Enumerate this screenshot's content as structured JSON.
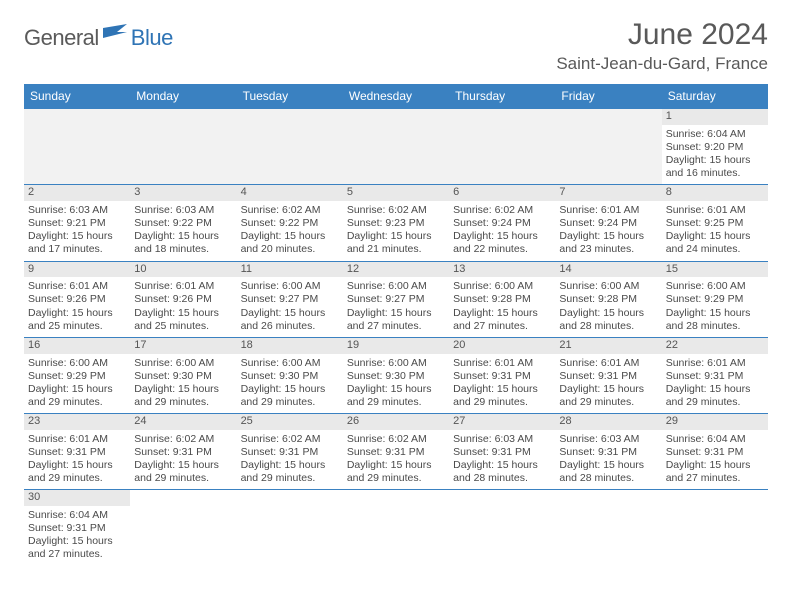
{
  "brand": {
    "part1": "General",
    "part2": "Blue",
    "flag_color": "#2f74b5"
  },
  "header": {
    "month_title": "June 2024",
    "location": "Saint-Jean-du-Gard, France"
  },
  "colors": {
    "header_bg": "#3a81c1",
    "header_text": "#ffffff",
    "row_border": "#3a81c1",
    "daynum_bg": "#e9e9e9",
    "blank_bg": "#f2f2f2",
    "body_text": "#4a4a4a",
    "title_text": "#595959"
  },
  "layout": {
    "columns": 7,
    "cell_font_size_pt": 8,
    "header_font_size_pt": 9
  },
  "day_labels": [
    "Sunday",
    "Monday",
    "Tuesday",
    "Wednesday",
    "Thursday",
    "Friday",
    "Saturday"
  ],
  "weeks": [
    [
      {
        "blank": true
      },
      {
        "blank": true
      },
      {
        "blank": true
      },
      {
        "blank": true
      },
      {
        "blank": true
      },
      {
        "blank": true
      },
      {
        "n": "1",
        "sunrise": "Sunrise: 6:04 AM",
        "sunset": "Sunset: 9:20 PM",
        "daylight1": "Daylight: 15 hours",
        "daylight2": "and 16 minutes."
      }
    ],
    [
      {
        "n": "2",
        "sunrise": "Sunrise: 6:03 AM",
        "sunset": "Sunset: 9:21 PM",
        "daylight1": "Daylight: 15 hours",
        "daylight2": "and 17 minutes."
      },
      {
        "n": "3",
        "sunrise": "Sunrise: 6:03 AM",
        "sunset": "Sunset: 9:22 PM",
        "daylight1": "Daylight: 15 hours",
        "daylight2": "and 18 minutes."
      },
      {
        "n": "4",
        "sunrise": "Sunrise: 6:02 AM",
        "sunset": "Sunset: 9:22 PM",
        "daylight1": "Daylight: 15 hours",
        "daylight2": "and 20 minutes."
      },
      {
        "n": "5",
        "sunrise": "Sunrise: 6:02 AM",
        "sunset": "Sunset: 9:23 PM",
        "daylight1": "Daylight: 15 hours",
        "daylight2": "and 21 minutes."
      },
      {
        "n": "6",
        "sunrise": "Sunrise: 6:02 AM",
        "sunset": "Sunset: 9:24 PM",
        "daylight1": "Daylight: 15 hours",
        "daylight2": "and 22 minutes."
      },
      {
        "n": "7",
        "sunrise": "Sunrise: 6:01 AM",
        "sunset": "Sunset: 9:24 PM",
        "daylight1": "Daylight: 15 hours",
        "daylight2": "and 23 minutes."
      },
      {
        "n": "8",
        "sunrise": "Sunrise: 6:01 AM",
        "sunset": "Sunset: 9:25 PM",
        "daylight1": "Daylight: 15 hours",
        "daylight2": "and 24 minutes."
      }
    ],
    [
      {
        "n": "9",
        "sunrise": "Sunrise: 6:01 AM",
        "sunset": "Sunset: 9:26 PM",
        "daylight1": "Daylight: 15 hours",
        "daylight2": "and 25 minutes."
      },
      {
        "n": "10",
        "sunrise": "Sunrise: 6:01 AM",
        "sunset": "Sunset: 9:26 PM",
        "daylight1": "Daylight: 15 hours",
        "daylight2": "and 25 minutes."
      },
      {
        "n": "11",
        "sunrise": "Sunrise: 6:00 AM",
        "sunset": "Sunset: 9:27 PM",
        "daylight1": "Daylight: 15 hours",
        "daylight2": "and 26 minutes."
      },
      {
        "n": "12",
        "sunrise": "Sunrise: 6:00 AM",
        "sunset": "Sunset: 9:27 PM",
        "daylight1": "Daylight: 15 hours",
        "daylight2": "and 27 minutes."
      },
      {
        "n": "13",
        "sunrise": "Sunrise: 6:00 AM",
        "sunset": "Sunset: 9:28 PM",
        "daylight1": "Daylight: 15 hours",
        "daylight2": "and 27 minutes."
      },
      {
        "n": "14",
        "sunrise": "Sunrise: 6:00 AM",
        "sunset": "Sunset: 9:28 PM",
        "daylight1": "Daylight: 15 hours",
        "daylight2": "and 28 minutes."
      },
      {
        "n": "15",
        "sunrise": "Sunrise: 6:00 AM",
        "sunset": "Sunset: 9:29 PM",
        "daylight1": "Daylight: 15 hours",
        "daylight2": "and 28 minutes."
      }
    ],
    [
      {
        "n": "16",
        "sunrise": "Sunrise: 6:00 AM",
        "sunset": "Sunset: 9:29 PM",
        "daylight1": "Daylight: 15 hours",
        "daylight2": "and 29 minutes."
      },
      {
        "n": "17",
        "sunrise": "Sunrise: 6:00 AM",
        "sunset": "Sunset: 9:30 PM",
        "daylight1": "Daylight: 15 hours",
        "daylight2": "and 29 minutes."
      },
      {
        "n": "18",
        "sunrise": "Sunrise: 6:00 AM",
        "sunset": "Sunset: 9:30 PM",
        "daylight1": "Daylight: 15 hours",
        "daylight2": "and 29 minutes."
      },
      {
        "n": "19",
        "sunrise": "Sunrise: 6:00 AM",
        "sunset": "Sunset: 9:30 PM",
        "daylight1": "Daylight: 15 hours",
        "daylight2": "and 29 minutes."
      },
      {
        "n": "20",
        "sunrise": "Sunrise: 6:01 AM",
        "sunset": "Sunset: 9:31 PM",
        "daylight1": "Daylight: 15 hours",
        "daylight2": "and 29 minutes."
      },
      {
        "n": "21",
        "sunrise": "Sunrise: 6:01 AM",
        "sunset": "Sunset: 9:31 PM",
        "daylight1": "Daylight: 15 hours",
        "daylight2": "and 29 minutes."
      },
      {
        "n": "22",
        "sunrise": "Sunrise: 6:01 AM",
        "sunset": "Sunset: 9:31 PM",
        "daylight1": "Daylight: 15 hours",
        "daylight2": "and 29 minutes."
      }
    ],
    [
      {
        "n": "23",
        "sunrise": "Sunrise: 6:01 AM",
        "sunset": "Sunset: 9:31 PM",
        "daylight1": "Daylight: 15 hours",
        "daylight2": "and 29 minutes."
      },
      {
        "n": "24",
        "sunrise": "Sunrise: 6:02 AM",
        "sunset": "Sunset: 9:31 PM",
        "daylight1": "Daylight: 15 hours",
        "daylight2": "and 29 minutes."
      },
      {
        "n": "25",
        "sunrise": "Sunrise: 6:02 AM",
        "sunset": "Sunset: 9:31 PM",
        "daylight1": "Daylight: 15 hours",
        "daylight2": "and 29 minutes."
      },
      {
        "n": "26",
        "sunrise": "Sunrise: 6:02 AM",
        "sunset": "Sunset: 9:31 PM",
        "daylight1": "Daylight: 15 hours",
        "daylight2": "and 29 minutes."
      },
      {
        "n": "27",
        "sunrise": "Sunrise: 6:03 AM",
        "sunset": "Sunset: 9:31 PM",
        "daylight1": "Daylight: 15 hours",
        "daylight2": "and 28 minutes."
      },
      {
        "n": "28",
        "sunrise": "Sunrise: 6:03 AM",
        "sunset": "Sunset: 9:31 PM",
        "daylight1": "Daylight: 15 hours",
        "daylight2": "and 28 minutes."
      },
      {
        "n": "29",
        "sunrise": "Sunrise: 6:04 AM",
        "sunset": "Sunset: 9:31 PM",
        "daylight1": "Daylight: 15 hours",
        "daylight2": "and 27 minutes."
      }
    ],
    [
      {
        "n": "30",
        "sunrise": "Sunrise: 6:04 AM",
        "sunset": "Sunset: 9:31 PM",
        "daylight1": "Daylight: 15 hours",
        "daylight2": "and 27 minutes."
      },
      {
        "blank": true
      },
      {
        "blank": true
      },
      {
        "blank": true
      },
      {
        "blank": true
      },
      {
        "blank": true
      },
      {
        "blank": true
      }
    ]
  ]
}
